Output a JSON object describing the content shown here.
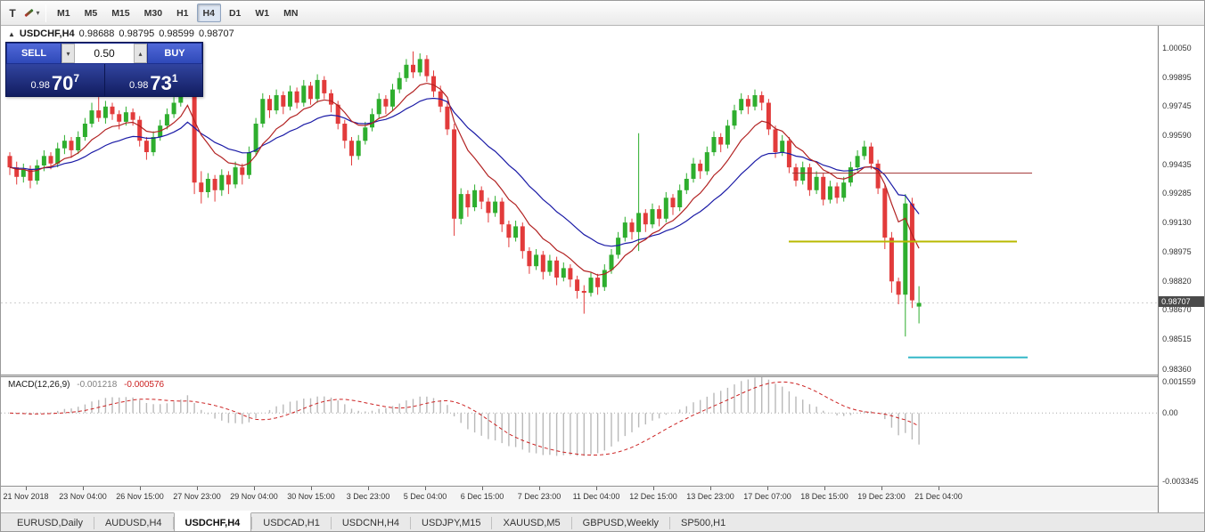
{
  "colors": {
    "bull": "#2eae2e",
    "bear": "#e23b3b",
    "ma_fast": "#b22222",
    "ma_slow": "#1a1aa6",
    "macd_hist": "#b9b9b9",
    "macd_signal": "#cc2222",
    "level_red": "#a03030",
    "level_yellow": "#b8ba00",
    "level_cyan": "#35b8c8",
    "bid_line": "#cfcfcf"
  },
  "toolbar": {
    "left_icon_glyph": "T",
    "dropdown_glyph": "▾",
    "timeframes": [
      "M1",
      "M5",
      "M15",
      "M30",
      "H1",
      "H4",
      "D1",
      "W1",
      "MN"
    ],
    "active_timeframe": "H4"
  },
  "chart_header": {
    "collapse_icon": "▲",
    "symbol": "USDCHF,H4",
    "open": "0.98688",
    "high": "0.98795",
    "low": "0.98599",
    "close": "0.98707"
  },
  "trade_widget": {
    "sell_label": "SELL",
    "buy_label": "BUY",
    "volume": "0.50",
    "spin_down_glyph": "▾",
    "spin_up_glyph": "▴",
    "sell_price": {
      "prefix": "0.98",
      "big": "70",
      "sup": "7"
    },
    "buy_price": {
      "prefix": "0.98",
      "big": "73",
      "sup": "1"
    }
  },
  "price_axis": [
    "1.00050",
    "0.99895",
    "0.99745",
    "0.99590",
    "0.99435",
    "0.99285",
    "0.99130",
    "0.98975",
    "0.98820",
    "0.98670",
    "0.98515",
    "0.98360"
  ],
  "current_price_label": "0.98707",
  "macd_panel": {
    "name": "MACD(12,26,9)",
    "value_main": "-0.001218",
    "value_signal": "-0.000576",
    "axis": [
      "0.001559",
      "0.00",
      "-0.003345"
    ]
  },
  "time_axis": [
    "21 Nov 2018",
    "23 Nov 04:00",
    "26 Nov 15:00",
    "27 Nov 23:00",
    "29 Nov 04:00",
    "30 Nov 15:00",
    "3 Dec 23:00",
    "5 Dec 04:00",
    "6 Dec 15:00",
    "7 Dec 23:00",
    "11 Dec 04:00",
    "12 Dec 15:00",
    "13 Dec 23:00",
    "17 Dec 07:00",
    "18 Dec 15:00",
    "19 Dec 23:00",
    "21 Dec 04:00"
  ],
  "bottom_tabs": [
    "EURUSD,Daily",
    "AUDUSD,H4",
    "USDCHF,H4",
    "USDCAD,H1",
    "USDCNH,H4",
    "USDJPY,M15",
    "XAUUSD,M5",
    "GBPUSD,Weekly",
    "SP500,H1"
  ],
  "active_tab": "USDCHF,H4",
  "chart_data": {
    "type": "candlestick",
    "symbol": "USDCHF",
    "timeframe": "H4",
    "last_ohlc": [
      0.98688,
      0.98795,
      0.98599,
      0.98707
    ],
    "ylim": [
      0.9833,
      1.00165
    ],
    "candles": [
      [
        0.9948,
        0.995,
        0.9938,
        0.9942
      ],
      [
        0.9942,
        0.9945,
        0.9933,
        0.9937
      ],
      [
        0.9937,
        0.9944,
        0.9934,
        0.9941
      ],
      [
        0.9941,
        0.9943,
        0.9931,
        0.9935
      ],
      [
        0.9935,
        0.9946,
        0.9933,
        0.9943
      ],
      [
        0.9943,
        0.9951,
        0.994,
        0.9948
      ],
      [
        0.9948,
        0.995,
        0.9941,
        0.9944
      ],
      [
        0.9944,
        0.9955,
        0.9942,
        0.9952
      ],
      [
        0.9952,
        0.9959,
        0.9949,
        0.9956
      ],
      [
        0.9956,
        0.9958,
        0.9947,
        0.9951
      ],
      [
        0.9951,
        0.9961,
        0.9949,
        0.9958
      ],
      [
        0.9958,
        0.9968,
        0.9956,
        0.9965
      ],
      [
        0.9965,
        0.9976,
        0.9963,
        0.9972
      ],
      [
        0.9972,
        0.9979,
        0.9966,
        0.9968
      ],
      [
        0.9968,
        0.9977,
        0.9965,
        0.9974
      ],
      [
        0.9974,
        0.9976,
        0.9967,
        0.997
      ],
      [
        0.997,
        0.9972,
        0.9962,
        0.9966
      ],
      [
        0.9966,
        0.9974,
        0.9964,
        0.9971
      ],
      [
        0.9971,
        0.9973,
        0.9964,
        0.9967
      ],
      [
        0.9967,
        0.9969,
        0.9953,
        0.9956
      ],
      [
        0.9956,
        0.9958,
        0.9946,
        0.995
      ],
      [
        0.995,
        0.9961,
        0.9948,
        0.9958
      ],
      [
        0.9958,
        0.9967,
        0.9956,
        0.9964
      ],
      [
        0.9964,
        0.9973,
        0.9962,
        0.997
      ],
      [
        0.997,
        0.9979,
        0.9968,
        0.9976
      ],
      [
        0.9976,
        0.9985,
        0.9974,
        0.9982
      ],
      [
        0.9982,
        1.0004,
        0.998,
        0.9998
      ],
      [
        0.9998,
        1.0002,
        0.9928,
        0.9934
      ],
      [
        0.9934,
        0.994,
        0.9923,
        0.9929
      ],
      [
        0.9929,
        0.9939,
        0.9926,
        0.9936
      ],
      [
        0.9936,
        0.9938,
        0.9924,
        0.993
      ],
      [
        0.993,
        0.9941,
        0.9927,
        0.9938
      ],
      [
        0.9938,
        0.994,
        0.9928,
        0.9933
      ],
      [
        0.9933,
        0.9945,
        0.9931,
        0.9942
      ],
      [
        0.9942,
        0.9944,
        0.9933,
        0.9938
      ],
      [
        0.9938,
        0.9953,
        0.9936,
        0.995
      ],
      [
        0.995,
        0.9968,
        0.9948,
        0.9965
      ],
      [
        0.9965,
        0.9981,
        0.9963,
        0.9978
      ],
      [
        0.9978,
        0.998,
        0.9968,
        0.9972
      ],
      [
        0.9972,
        0.9983,
        0.997,
        0.998
      ],
      [
        0.998,
        0.9982,
        0.997,
        0.9974
      ],
      [
        0.9974,
        0.9985,
        0.9972,
        0.9982
      ],
      [
        0.9982,
        0.9984,
        0.9973,
        0.9976
      ],
      [
        0.9976,
        0.9988,
        0.9974,
        0.9985
      ],
      [
        0.9985,
        0.9987,
        0.9975,
        0.9978
      ],
      [
        0.9978,
        0.9991,
        0.9976,
        0.9988
      ],
      [
        0.9988,
        0.999,
        0.9978,
        0.9981
      ],
      [
        0.9981,
        0.9983,
        0.9971,
        0.9975
      ],
      [
        0.9975,
        0.9977,
        0.9962,
        0.9965
      ],
      [
        0.9965,
        0.9967,
        0.9952,
        0.9956
      ],
      [
        0.9956,
        0.9958,
        0.9943,
        0.9948
      ],
      [
        0.9948,
        0.9959,
        0.9946,
        0.9956
      ],
      [
        0.9956,
        0.9966,
        0.9954,
        0.9963
      ],
      [
        0.9963,
        0.9973,
        0.9961,
        0.997
      ],
      [
        0.997,
        0.9981,
        0.9968,
        0.9978
      ],
      [
        0.9978,
        0.998,
        0.997,
        0.9974
      ],
      [
        0.9974,
        0.9986,
        0.9972,
        0.9983
      ],
      [
        0.9983,
        0.9992,
        0.9981,
        0.9989
      ],
      [
        0.9989,
        0.9999,
        0.9987,
        0.9996
      ],
      [
        0.9996,
        1.0003,
        0.9989,
        0.9992
      ],
      [
        0.9992,
        1.0002,
        0.999,
        0.9999
      ],
      [
        0.9999,
        1.0001,
        0.9987,
        0.999
      ],
      [
        0.999,
        0.9993,
        0.9979,
        0.9982
      ],
      [
        0.9982,
        0.9985,
        0.9971,
        0.9974
      ],
      [
        0.9974,
        0.9977,
        0.9959,
        0.9962
      ],
      [
        0.9962,
        0.9965,
        0.9906,
        0.9915
      ],
      [
        0.9915,
        0.9931,
        0.9912,
        0.9928
      ],
      [
        0.9928,
        0.993,
        0.9916,
        0.9921
      ],
      [
        0.9921,
        0.9933,
        0.9919,
        0.993
      ],
      [
        0.993,
        0.9932,
        0.992,
        0.9924
      ],
      [
        0.9924,
        0.9926,
        0.9913,
        0.9918
      ],
      [
        0.9918,
        0.9927,
        0.9916,
        0.9924
      ],
      [
        0.9924,
        0.9926,
        0.9908,
        0.9912
      ],
      [
        0.9912,
        0.9914,
        0.99,
        0.9905
      ],
      [
        0.9905,
        0.9914,
        0.9903,
        0.9911
      ],
      [
        0.9911,
        0.9913,
        0.9894,
        0.9898
      ],
      [
        0.9898,
        0.99,
        0.9886,
        0.989
      ],
      [
        0.989,
        0.9899,
        0.9888,
        0.9896
      ],
      [
        0.9896,
        0.9898,
        0.9883,
        0.9887
      ],
      [
        0.9887,
        0.9896,
        0.9885,
        0.9893
      ],
      [
        0.9893,
        0.9895,
        0.988,
        0.9884
      ],
      [
        0.9884,
        0.9892,
        0.9882,
        0.9889
      ],
      [
        0.9889,
        0.9891,
        0.9879,
        0.9883
      ],
      [
        0.9883,
        0.9885,
        0.9873,
        0.9877
      ],
      [
        0.9877,
        0.988,
        0.9865,
        0.9876
      ],
      [
        0.9876,
        0.9887,
        0.9874,
        0.9884
      ],
      [
        0.9884,
        0.9886,
        0.9875,
        0.9879
      ],
      [
        0.9879,
        0.9891,
        0.9877,
        0.9888
      ],
      [
        0.9888,
        0.9899,
        0.9886,
        0.9896
      ],
      [
        0.9896,
        0.9908,
        0.9894,
        0.9905
      ],
      [
        0.9905,
        0.9916,
        0.9903,
        0.9913
      ],
      [
        0.9913,
        0.9915,
        0.9904,
        0.9908
      ],
      [
        0.9908,
        0.996,
        0.9898,
        0.9918
      ],
      [
        0.9918,
        0.992,
        0.9908,
        0.9912
      ],
      [
        0.9912,
        0.9923,
        0.991,
        0.992
      ],
      [
        0.992,
        0.9922,
        0.9911,
        0.9915
      ],
      [
        0.9915,
        0.9929,
        0.9913,
        0.9926
      ],
      [
        0.9926,
        0.9928,
        0.9917,
        0.9921
      ],
      [
        0.9921,
        0.9933,
        0.9919,
        0.993
      ],
      [
        0.993,
        0.9939,
        0.9928,
        0.9936
      ],
      [
        0.9936,
        0.9947,
        0.9934,
        0.9944
      ],
      [
        0.9944,
        0.9946,
        0.9936,
        0.994
      ],
      [
        0.994,
        0.9953,
        0.9938,
        0.995
      ],
      [
        0.995,
        0.9961,
        0.9948,
        0.9958
      ],
      [
        0.9958,
        0.996,
        0.995,
        0.9954
      ],
      [
        0.9954,
        0.9967,
        0.9952,
        0.9964
      ],
      [
        0.9964,
        0.9975,
        0.9962,
        0.9972
      ],
      [
        0.9972,
        0.9981,
        0.997,
        0.9978
      ],
      [
        0.9978,
        0.998,
        0.997,
        0.9974
      ],
      [
        0.9974,
        0.9983,
        0.9972,
        0.998
      ],
      [
        0.998,
        0.9982,
        0.9972,
        0.9976
      ],
      [
        0.9976,
        0.9978,
        0.9959,
        0.9962
      ],
      [
        0.9962,
        0.9964,
        0.9947,
        0.995
      ],
      [
        0.995,
        0.9959,
        0.9948,
        0.9956
      ],
      [
        0.9956,
        0.9958,
        0.9939,
        0.9942
      ],
      [
        0.9942,
        0.9944,
        0.9932,
        0.9935
      ],
      [
        0.9935,
        0.9945,
        0.9933,
        0.9942
      ],
      [
        0.9942,
        0.9944,
        0.9927,
        0.993
      ],
      [
        0.993,
        0.994,
        0.9928,
        0.9937
      ],
      [
        0.9937,
        0.9939,
        0.9922,
        0.9925
      ],
      [
        0.9925,
        0.9935,
        0.9923,
        0.9932
      ],
      [
        0.9932,
        0.9934,
        0.9923,
        0.9926
      ],
      [
        0.9926,
        0.9937,
        0.9924,
        0.9934
      ],
      [
        0.9934,
        0.9945,
        0.9932,
        0.9942
      ],
      [
        0.9942,
        0.9951,
        0.994,
        0.9948
      ],
      [
        0.9948,
        0.9956,
        0.9946,
        0.9953
      ],
      [
        0.9953,
        0.9955,
        0.9941,
        0.9944
      ],
      [
        0.9944,
        0.9946,
        0.9928,
        0.9931
      ],
      [
        0.9931,
        0.9933,
        0.9899,
        0.9905
      ],
      [
        0.9905,
        0.9908,
        0.9876,
        0.9882
      ],
      [
        0.9882,
        0.9884,
        0.987,
        0.9875
      ],
      [
        0.9875,
        0.9928,
        0.9853,
        0.9923
      ],
      [
        0.9923,
        0.9926,
        0.9868,
        0.9872
      ],
      [
        0.98688,
        0.98795,
        0.98599,
        0.98707
      ]
    ],
    "overlays": {
      "ma_fast_period": 9,
      "ma_slow_period": 21,
      "bid_price": 0.98707,
      "levels": [
        {
          "price": 0.9939,
          "color_key": "level_red",
          "x_start_frac": 0.683,
          "x_end_frac": 0.89,
          "width": 1
        },
        {
          "price": 0.9903,
          "color_key": "level_yellow",
          "x_start_frac": 0.68,
          "x_end_frac": 0.877,
          "width": 2
        },
        {
          "price": 0.9842,
          "color_key": "level_cyan",
          "x_start_frac": 0.783,
          "x_end_frac": 0.886,
          "width": 2
        }
      ]
    },
    "macd": {
      "fast": 12,
      "slow": 26,
      "signal_period": 9,
      "ylim": [
        -0.00345,
        0.0017
      ]
    }
  }
}
